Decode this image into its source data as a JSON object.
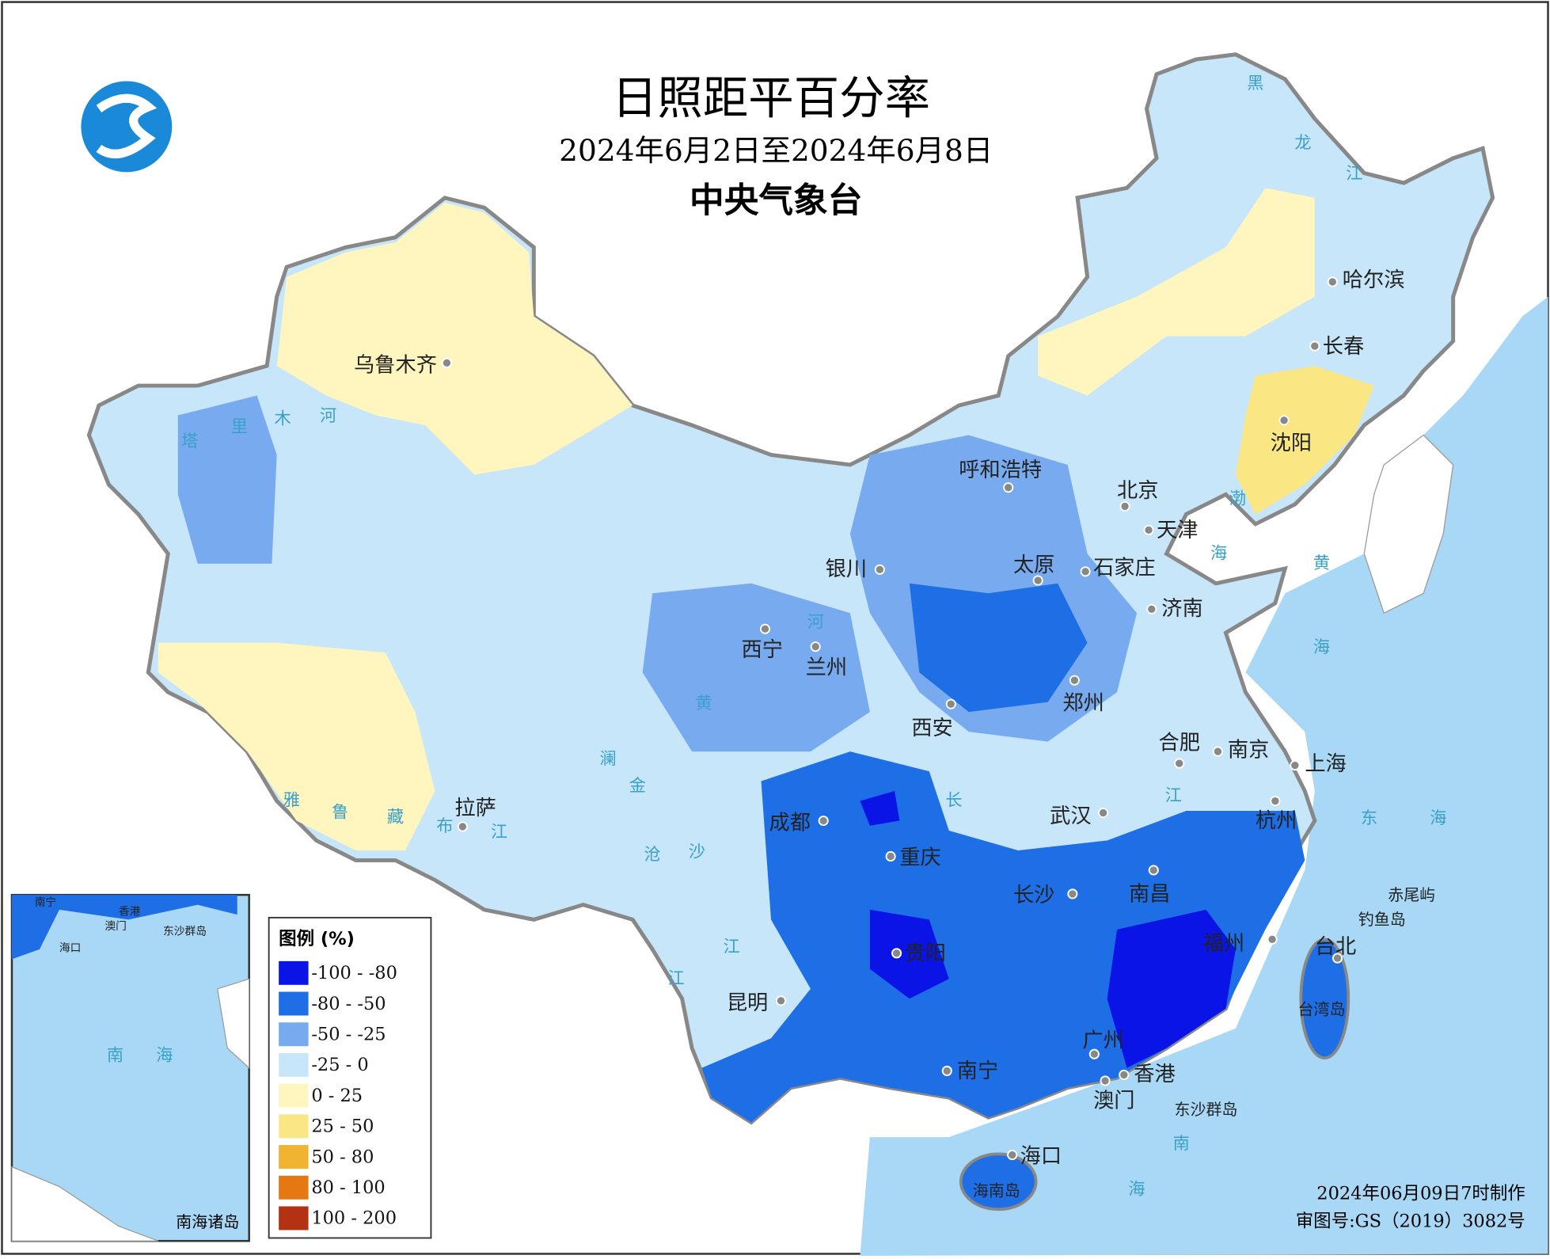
{
  "header": {
    "title": "日照距平百分率",
    "subtitle": "2024年6月2日至2024年6月8日",
    "agency": "中央气象台"
  },
  "legend": {
    "title": "图例 (%)",
    "items": [
      {
        "label": "-100 - -80",
        "color": "#0a14e6"
      },
      {
        "label": "-80 - -50",
        "color": "#1e6ee6"
      },
      {
        "label": "-50 - -25",
        "color": "#78aaf0"
      },
      {
        "label": "-25 - 0",
        "color": "#c8e6fa"
      },
      {
        "label": "0 - 25",
        "color": "#fff5be"
      },
      {
        "label": "25 - 50",
        "color": "#fae682"
      },
      {
        "label": "50 - 80",
        "color": "#f0b432"
      },
      {
        "label": "80 - 100",
        "color": "#e67814"
      },
      {
        "label": "100 - 200",
        "color": "#b43214"
      }
    ]
  },
  "cities": [
    "乌鲁木齐",
    "哈尔滨",
    "长春",
    "沈阳",
    "呼和浩特",
    "北京",
    "天津",
    "石家庄",
    "太原",
    "银川",
    "济南",
    "西宁",
    "兰州",
    "郑州",
    "西安",
    "合肥",
    "南京",
    "上海",
    "拉萨",
    "成都",
    "武汉",
    "杭州",
    "重庆",
    "长沙",
    "南昌",
    "福州",
    "台北",
    "贵阳",
    "昆明",
    "广州",
    "香港",
    "南宁",
    "澳门",
    "海口"
  ],
  "map_labels": [
    "黑",
    "龙",
    "江",
    "塔",
    "里",
    "木",
    "河",
    "雅",
    "鲁",
    "藏",
    "布",
    "江",
    "渤",
    "海",
    "黄",
    "海",
    "东",
    "海",
    "南",
    "海",
    "黄",
    "河",
    "长",
    "江",
    "澜",
    "沧",
    "江",
    "金",
    "沙",
    "江",
    "赤尾屿",
    "钓鱼岛",
    "台湾岛",
    "东沙群岛",
    "海南岛"
  ],
  "inset": {
    "title": "南海诸岛",
    "labels": [
      "南宁",
      "香港",
      "澳门",
      "东沙群岛",
      "海口",
      "南",
      "海"
    ]
  },
  "footer": {
    "made": "2024年06月09日7时制作",
    "approval": "审图号:GS（2019）3082号"
  }
}
